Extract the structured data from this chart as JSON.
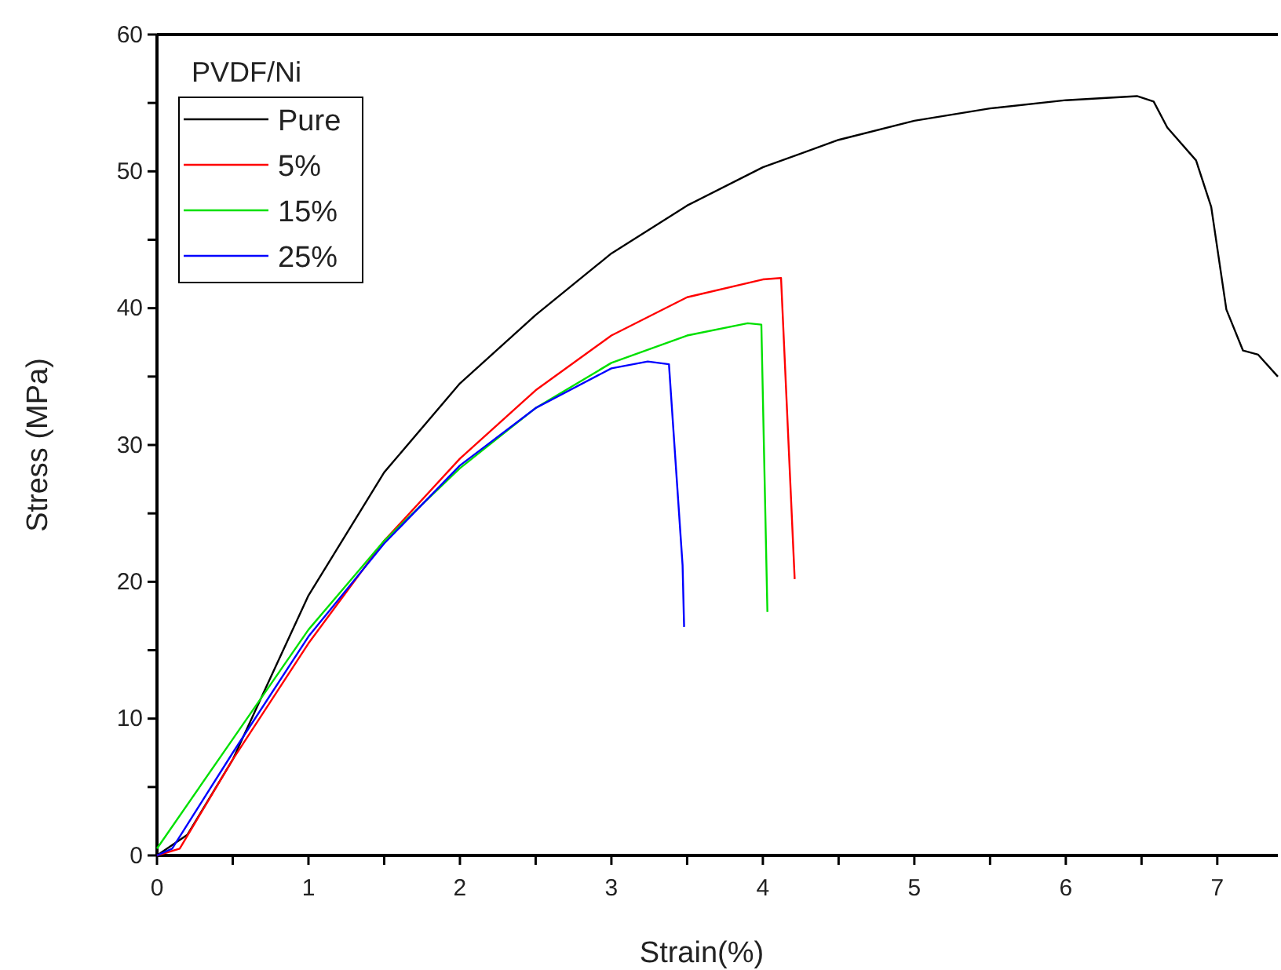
{
  "chart_data": {
    "type": "line",
    "xlabel": "Strain(%)",
    "ylabel": "Stress (MPa)",
    "legend_title": "PVDF/Ni",
    "legend": "top left",
    "grid": false,
    "marker": "none",
    "line_style": "solid",
    "xlim": [
      0,
      7.4
    ],
    "ylim": [
      0,
      60
    ],
    "xticks": [
      0,
      {
        "value": 0.5,
        "label": null
      },
      1,
      {
        "value": 1.5,
        "label": null
      },
      2,
      {
        "value": 2.5,
        "label": null
      },
      3,
      {
        "value": 3.5,
        "label": null
      },
      4,
      {
        "value": 4.5,
        "label": null
      },
      5,
      {
        "value": 5.5,
        "label": null
      },
      6,
      {
        "value": 6.5,
        "label": null
      },
      7
    ],
    "yticks": [
      0,
      {
        "value": 5,
        "label": null
      },
      10,
      {
        "value": 15,
        "label": null
      },
      20,
      {
        "value": 25,
        "label": null
      },
      30,
      {
        "value": 35,
        "label": null
      },
      40,
      {
        "value": 45,
        "label": null
      },
      50,
      {
        "value": 55,
        "label": null
      },
      60
    ],
    "series": [
      {
        "name": "Pure",
        "color": "#000000",
        "x": [
          0,
          0.2,
          0.5,
          0.75,
          1,
          1.5,
          2,
          2.5,
          3,
          3.5,
          4,
          4.5,
          5,
          5.5,
          6,
          6.47,
          6.58,
          6.67,
          6.86,
          6.96,
          7.06,
          7.17,
          7.27,
          7.4
        ],
        "values": [
          0,
          1.5,
          7,
          13,
          19,
          28,
          34.5,
          39.5,
          44,
          47.5,
          50.3,
          52.3,
          53.7,
          54.6,
          55.2,
          55.5,
          55.1,
          53.2,
          50.8,
          47.4,
          39.9,
          36.9,
          36.6,
          35
        ]
      },
      {
        "name": "5%",
        "color": "#ff0000",
        "x": [
          0,
          0.15,
          0.5,
          1,
          1.5,
          2,
          2.5,
          3,
          3.5,
          4,
          4.12,
          4.21
        ],
        "values": [
          0,
          0.5,
          7,
          15.5,
          23,
          29,
          34,
          38,
          40.8,
          42.1,
          42.2,
          20.2
        ]
      },
      {
        "name": "15%",
        "color": "#00e000",
        "x": [
          0,
          0.5,
          1,
          1.5,
          2,
          2.5,
          3,
          3.5,
          3.9,
          3.99,
          4.03
        ],
        "values": [
          0.5,
          8.5,
          16.5,
          23,
          28.3,
          32.7,
          36,
          38,
          38.9,
          38.8,
          17.8
        ]
      },
      {
        "name": "25%",
        "color": "#0000ff",
        "x": [
          0,
          0.1,
          0.5,
          1,
          1.5,
          2,
          2.5,
          3,
          3.24,
          3.38,
          3.47,
          3.48
        ],
        "values": [
          0,
          0.5,
          7.5,
          16,
          22.8,
          28.5,
          32.7,
          35.6,
          36.1,
          35.9,
          21.2,
          16.7
        ]
      }
    ]
  }
}
